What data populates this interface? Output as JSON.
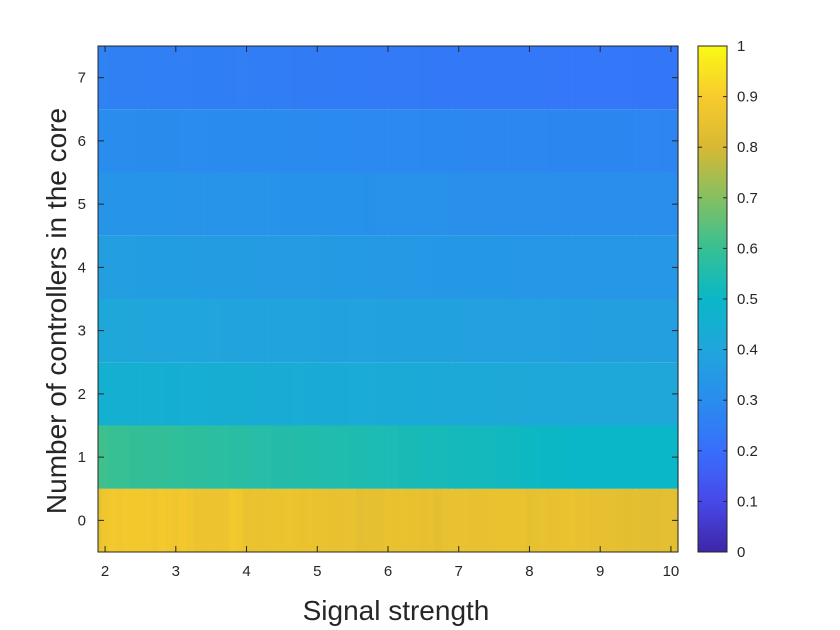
{
  "chart_data": {
    "type": "heatmap",
    "title": "",
    "xlabel": "Signal strength",
    "ylabel": "Number of controllers in the core",
    "x_ticks": [
      2,
      3,
      4,
      5,
      6,
      7,
      8,
      9,
      10
    ],
    "y_ticks": [
      0,
      1,
      2,
      3,
      4,
      5,
      6,
      7
    ],
    "colorbar": {
      "ticks": [
        "0",
        "0.1",
        "0.2",
        "0.3",
        "0.4",
        "0.5",
        "0.6",
        "0.7",
        "0.8",
        "0.9",
        "1"
      ],
      "range": [
        0,
        1
      ],
      "colormap": "parula"
    },
    "xlim": [
      1.9,
      10.1
    ],
    "ylim": [
      -0.5,
      7.5
    ],
    "x_step": 0.1,
    "x": [
      1.9,
      2.0,
      2.1,
      2.2,
      2.3,
      2.4,
      2.5,
      2.6,
      2.7,
      2.8,
      2.9,
      3.0,
      3.1,
      3.2,
      3.3,
      3.4,
      3.5,
      3.6,
      3.7,
      3.8,
      3.9,
      4.0,
      4.1,
      4.2,
      4.3,
      4.4,
      4.5,
      4.6,
      4.7,
      4.8,
      4.9,
      5.0,
      5.1,
      5.2,
      5.3,
      5.4,
      5.5,
      5.6,
      5.7,
      5.8,
      5.9,
      6.0,
      6.1,
      6.2,
      6.3,
      6.4,
      6.5,
      6.6,
      6.7,
      6.8,
      6.9,
      7.0,
      7.1,
      7.2,
      7.3,
      7.4,
      7.5,
      7.6,
      7.7,
      7.8,
      7.9,
      8.0,
      8.1,
      8.2,
      8.3,
      8.4,
      8.5,
      8.6,
      8.7,
      8.8,
      8.9,
      9.0,
      9.1,
      9.2,
      9.3,
      9.4,
      9.5,
      9.6,
      9.7,
      9.8,
      9.9,
      10.0,
      10.1
    ],
    "rows": [
      {
        "y": 0,
        "values": [
          0.845,
          0.875,
          0.885,
          0.878,
          0.889,
          0.884,
          0.884,
          0.882,
          0.876,
          0.887,
          0.88,
          0.873,
          0.886,
          0.876,
          0.861,
          0.865,
          0.865,
          0.865,
          0.864,
          0.885,
          0.879,
          0.854,
          0.86,
          0.855,
          0.856,
          0.859,
          0.856,
          0.861,
          0.857,
          0.855,
          0.858,
          0.852,
          0.855,
          0.848,
          0.847,
          0.85,
          0.855,
          0.838,
          0.844,
          0.844,
          0.842,
          0.852,
          0.849,
          0.854,
          0.847,
          0.847,
          0.843,
          0.847,
          0.837,
          0.847,
          0.851,
          0.851,
          0.851,
          0.847,
          0.848,
          0.847,
          0.855,
          0.855,
          0.855,
          0.853,
          0.855,
          0.84,
          0.846,
          0.85,
          0.848,
          0.849,
          0.855,
          0.859,
          0.848,
          0.851,
          0.844,
          0.843,
          0.844,
          0.84,
          0.835,
          0.834,
          0.836,
          0.831,
          0.832,
          0.834,
          0.836,
          0.835,
          0.831
        ]
      },
      {
        "y": 1,
        "values": [
          0.615,
          0.61,
          0.6,
          0.6,
          0.6,
          0.59,
          0.59,
          0.59,
          0.59,
          0.59,
          0.59,
          0.585,
          0.585,
          0.58,
          0.58,
          0.58,
          0.575,
          0.575,
          0.575,
          0.57,
          0.57,
          0.57,
          0.565,
          0.565,
          0.565,
          0.56,
          0.56,
          0.56,
          0.56,
          0.555,
          0.555,
          0.555,
          0.55,
          0.55,
          0.55,
          0.55,
          0.545,
          0.545,
          0.545,
          0.54,
          0.54,
          0.54,
          0.54,
          0.535,
          0.535,
          0.535,
          0.53,
          0.53,
          0.53,
          0.53,
          0.525,
          0.525,
          0.525,
          0.52,
          0.52,
          0.52,
          0.52,
          0.515,
          0.515,
          0.515,
          0.51,
          0.51,
          0.51,
          0.505,
          0.505,
          0.505,
          0.505,
          0.5,
          0.5,
          0.5,
          0.5,
          0.5,
          0.5,
          0.5,
          0.5,
          0.5,
          0.5,
          0.5,
          0.5,
          0.5,
          0.5,
          0.5,
          0.5
        ]
      },
      {
        "y": 2,
        "values": [
          0.46,
          0.46,
          0.455,
          0.455,
          0.455,
          0.452,
          0.452,
          0.45,
          0.45,
          0.45,
          0.448,
          0.448,
          0.446,
          0.446,
          0.445,
          0.445,
          0.443,
          0.443,
          0.442,
          0.442,
          0.44,
          0.44,
          0.438,
          0.438,
          0.437,
          0.437,
          0.435,
          0.435,
          0.434,
          0.434,
          0.432,
          0.432,
          0.431,
          0.431,
          0.43,
          0.43,
          0.428,
          0.428,
          0.427,
          0.427,
          0.425,
          0.425,
          0.424,
          0.424,
          0.423,
          0.423,
          0.421,
          0.421,
          0.42,
          0.42,
          0.419,
          0.419,
          0.418,
          0.418,
          0.416,
          0.416,
          0.415,
          0.415,
          0.414,
          0.414,
          0.413,
          0.413,
          0.412,
          0.412,
          0.411,
          0.411,
          0.41,
          0.41,
          0.41,
          0.41,
          0.409,
          0.409,
          0.408,
          0.408,
          0.408,
          0.408,
          0.407,
          0.407,
          0.406,
          0.406,
          0.406,
          0.405,
          0.405
        ]
      },
      {
        "y": 3,
        "values": [
          0.41,
          0.41,
          0.405,
          0.405,
          0.405,
          0.4,
          0.4,
          0.4,
          0.4,
          0.4,
          0.398,
          0.398,
          0.396,
          0.396,
          0.395,
          0.395,
          0.394,
          0.394,
          0.392,
          0.392,
          0.391,
          0.391,
          0.39,
          0.39,
          0.389,
          0.389,
          0.388,
          0.388,
          0.387,
          0.387,
          0.386,
          0.386,
          0.385,
          0.385,
          0.384,
          0.384,
          0.383,
          0.383,
          0.382,
          0.382,
          0.381,
          0.381,
          0.38,
          0.38,
          0.38,
          0.38,
          0.379,
          0.379,
          0.378,
          0.378,
          0.378,
          0.378,
          0.377,
          0.377,
          0.376,
          0.376,
          0.376,
          0.376,
          0.375,
          0.375,
          0.375,
          0.375,
          0.374,
          0.374,
          0.374,
          0.374,
          0.373,
          0.373,
          0.373,
          0.373,
          0.372,
          0.372,
          0.372,
          0.372,
          0.371,
          0.371,
          0.371,
          0.371,
          0.37,
          0.37,
          0.37,
          0.37,
          0.37
        ]
      },
      {
        "y": 4,
        "values": [
          0.37,
          0.37,
          0.368,
          0.368,
          0.366,
          0.366,
          0.365,
          0.365,
          0.365,
          0.365,
          0.364,
          0.364,
          0.363,
          0.363,
          0.362,
          0.362,
          0.361,
          0.361,
          0.36,
          0.36,
          0.359,
          0.359,
          0.358,
          0.358,
          0.357,
          0.357,
          0.356,
          0.356,
          0.355,
          0.355,
          0.354,
          0.354,
          0.353,
          0.353,
          0.352,
          0.352,
          0.351,
          0.351,
          0.35,
          0.35,
          0.349,
          0.349,
          0.348,
          0.348,
          0.347,
          0.347,
          0.346,
          0.346,
          0.345,
          0.345,
          0.344,
          0.344,
          0.343,
          0.343,
          0.342,
          0.342,
          0.342,
          0.342,
          0.341,
          0.341,
          0.341,
          0.341,
          0.34,
          0.34,
          0.34,
          0.34,
          0.339,
          0.339,
          0.339,
          0.339,
          0.338,
          0.338,
          0.338,
          0.338,
          0.337,
          0.337,
          0.337,
          0.337,
          0.336,
          0.336,
          0.336,
          0.335,
          0.335
        ]
      },
      {
        "y": 5,
        "values": [
          0.33,
          0.33,
          0.33,
          0.33,
          0.329,
          0.329,
          0.328,
          0.328,
          0.328,
          0.328,
          0.327,
          0.327,
          0.326,
          0.326,
          0.325,
          0.325,
          0.325,
          0.325,
          0.324,
          0.324,
          0.323,
          0.323,
          0.322,
          0.322,
          0.322,
          0.322,
          0.321,
          0.321,
          0.32,
          0.32,
          0.32,
          0.32,
          0.319,
          0.319,
          0.318,
          0.318,
          0.318,
          0.318,
          0.317,
          0.317,
          0.316,
          0.316,
          0.316,
          0.316,
          0.315,
          0.315,
          0.314,
          0.314,
          0.314,
          0.314,
          0.313,
          0.313,
          0.312,
          0.312,
          0.312,
          0.312,
          0.311,
          0.311,
          0.31,
          0.31,
          0.31,
          0.31,
          0.309,
          0.309,
          0.309,
          0.309,
          0.308,
          0.308,
          0.308,
          0.308,
          0.307,
          0.307,
          0.307,
          0.307,
          0.306,
          0.306,
          0.306,
          0.306,
          0.305,
          0.305,
          0.305,
          0.305,
          0.305
        ]
      },
      {
        "y": 6,
        "values": [
          0.3,
          0.3,
          0.3,
          0.3,
          0.299,
          0.299,
          0.298,
          0.298,
          0.298,
          0.298,
          0.297,
          0.297,
          0.296,
          0.296,
          0.296,
          0.296,
          0.295,
          0.295,
          0.294,
          0.294,
          0.294,
          0.294,
          0.293,
          0.293,
          0.292,
          0.292,
          0.292,
          0.292,
          0.291,
          0.291,
          0.29,
          0.29,
          0.29,
          0.29,
          0.289,
          0.289,
          0.288,
          0.288,
          0.288,
          0.288,
          0.287,
          0.287,
          0.286,
          0.286,
          0.286,
          0.286,
          0.285,
          0.285,
          0.284,
          0.284,
          0.284,
          0.284,
          0.283,
          0.283,
          0.282,
          0.282,
          0.282,
          0.282,
          0.281,
          0.281,
          0.28,
          0.28,
          0.28,
          0.28,
          0.279,
          0.279,
          0.279,
          0.279,
          0.278,
          0.278,
          0.278,
          0.278,
          0.277,
          0.277,
          0.277,
          0.277,
          0.276,
          0.276,
          0.276,
          0.276,
          0.275,
          0.275,
          0.275
        ]
      },
      {
        "y": 7,
        "values": [
          0.265,
          0.265,
          0.262,
          0.262,
          0.26,
          0.26,
          0.258,
          0.258,
          0.256,
          0.256,
          0.255,
          0.255,
          0.254,
          0.254,
          0.253,
          0.253,
          0.252,
          0.252,
          0.251,
          0.251,
          0.25,
          0.25,
          0.249,
          0.249,
          0.248,
          0.248,
          0.247,
          0.247,
          0.246,
          0.246,
          0.245,
          0.245,
          0.244,
          0.244,
          0.243,
          0.243,
          0.242,
          0.242,
          0.241,
          0.241,
          0.24,
          0.24,
          0.239,
          0.239,
          0.238,
          0.238,
          0.237,
          0.237,
          0.236,
          0.236,
          0.235,
          0.235,
          0.234,
          0.234,
          0.233,
          0.233,
          0.232,
          0.232,
          0.232,
          0.232,
          0.231,
          0.231,
          0.231,
          0.231,
          0.23,
          0.23,
          0.23,
          0.23,
          0.229,
          0.229,
          0.229,
          0.229,
          0.228,
          0.228,
          0.228,
          0.228,
          0.227,
          0.227,
          0.227,
          0.227,
          0.226,
          0.226,
          0.226
        ]
      }
    ]
  }
}
